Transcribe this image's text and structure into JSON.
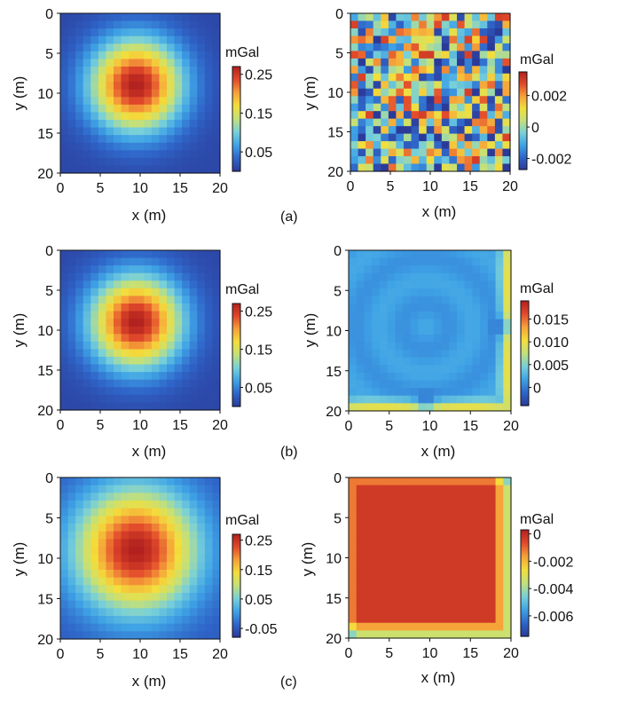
{
  "colormap": [
    "#2b3a99",
    "#2f66c9",
    "#3fa3e6",
    "#78d0d8",
    "#c3e07a",
    "#f3de3b",
    "#f6a13a",
    "#e24a2b",
    "#b0201e"
  ],
  "chart_data": [
    {
      "type": "heatmap",
      "id": "a-left",
      "row": "(a)",
      "pattern": "gauss",
      "x_range": [
        0,
        20
      ],
      "y_range": [
        0,
        20
      ],
      "y_inverted": true,
      "grid_cells": 21,
      "x_ticks": [
        "0",
        "5",
        "10",
        "15",
        "20"
      ],
      "y_ticks": [
        "0",
        "5",
        "10",
        "15",
        "20"
      ],
      "xlabel": "x (m)",
      "ylabel": "y (m)",
      "colorbar": {
        "unit": "mGal",
        "range": [
          0.0,
          0.27
        ],
        "ticks": [
          0.05,
          0.15,
          0.25
        ],
        "tick_labels": [
          "0.05",
          "0.15",
          "0.25"
        ]
      },
      "peak_center": [
        9.5,
        9.0
      ],
      "peak_value": 0.27,
      "edge_value": 0.01
    },
    {
      "type": "heatmap",
      "id": "a-right",
      "row": "(a)",
      "pattern": "noise",
      "x_range": [
        0,
        20
      ],
      "y_range": [
        0,
        20
      ],
      "y_inverted": true,
      "grid_cells": 21,
      "x_ticks": [
        "0",
        "5",
        "10",
        "15",
        "20"
      ],
      "y_ticks": [
        "0",
        "5",
        "10",
        "15",
        "20"
      ],
      "xlabel": "x (m)",
      "ylabel": "y (m)",
      "colorbar": {
        "unit": "mGal",
        "range": [
          -0.0027,
          0.0035
        ],
        "ticks": [
          -0.002,
          0,
          0.002
        ],
        "tick_labels": [
          "-0.002",
          "0",
          "0.002"
        ]
      },
      "noise_amplitude": 0.003
    },
    {
      "type": "heatmap",
      "id": "b-left",
      "row": "(b)",
      "pattern": "gauss",
      "x_range": [
        0,
        20
      ],
      "y_range": [
        0,
        20
      ],
      "y_inverted": true,
      "grid_cells": 21,
      "x_ticks": [
        "0",
        "5",
        "10",
        "15",
        "20"
      ],
      "y_ticks": [
        "0",
        "5",
        "10",
        "15",
        "20"
      ],
      "xlabel": "x (m)",
      "ylabel": "y (m)",
      "colorbar": {
        "unit": "mGal",
        "range": [
          0.0,
          0.27
        ],
        "ticks": [
          0.05,
          0.15,
          0.25
        ],
        "tick_labels": [
          "0.05",
          "0.15",
          "0.25"
        ]
      },
      "peak_center": [
        9.5,
        9.0
      ],
      "peak_value": 0.27,
      "edge_value": 0.01
    },
    {
      "type": "heatmap",
      "id": "b-right",
      "row": "(b)",
      "pattern": "edge-high",
      "x_range": [
        0,
        20
      ],
      "y_range": [
        0,
        20
      ],
      "y_inverted": true,
      "grid_cells": 21,
      "x_ticks": [
        "0",
        "5",
        "10",
        "15",
        "20"
      ],
      "y_ticks": [
        "0",
        "5",
        "10",
        "15",
        "20"
      ],
      "xlabel": "x (m)",
      "ylabel": "y (m)",
      "colorbar": {
        "unit": "mGal",
        "range": [
          -0.004,
          0.019
        ],
        "ticks": [
          0,
          0.005,
          0.01,
          0.015
        ],
        "tick_labels": [
          "0",
          "0.005",
          "0.010",
          "0.015"
        ]
      },
      "base_value": 0.0015,
      "edge_value": 0.015
    },
    {
      "type": "heatmap",
      "id": "c-left",
      "row": "(c)",
      "pattern": "gauss-wide",
      "x_range": [
        0,
        20
      ],
      "y_range": [
        0,
        20
      ],
      "y_inverted": true,
      "grid_cells": 21,
      "x_ticks": [
        "0",
        "5",
        "10",
        "15",
        "20"
      ],
      "y_ticks": [
        "0",
        "5",
        "10",
        "15",
        "20"
      ],
      "xlabel": "x (m)",
      "ylabel": "y (m)",
      "colorbar": {
        "unit": "mGal",
        "range": [
          -0.08,
          0.27
        ],
        "ticks": [
          -0.05,
          0.05,
          0.15,
          0.25
        ],
        "tick_labels": [
          "-0.05",
          "0.05",
          "0.15",
          "0.25"
        ]
      },
      "peak_center": [
        9.5,
        9.0
      ],
      "peak_value": 0.27,
      "edge_value": -0.05
    },
    {
      "type": "heatmap",
      "id": "c-right",
      "row": "(c)",
      "pattern": "edge-low",
      "x_range": [
        0,
        20
      ],
      "y_range": [
        0,
        20
      ],
      "y_inverted": true,
      "grid_cells": 21,
      "x_ticks": [
        "0",
        "5",
        "10",
        "15",
        "20"
      ],
      "y_ticks": [
        "0",
        "5",
        "10",
        "15",
        "20"
      ],
      "xlabel": "x (m)",
      "ylabel": "y (m)",
      "colorbar": {
        "unit": "mGal",
        "range": [
          -0.0075,
          0.0003
        ],
        "ticks": [
          -0.006,
          -0.004,
          -0.002,
          0
        ],
        "tick_labels": [
          "-0.006",
          "-0.004",
          "-0.002",
          "0"
        ]
      },
      "base_value": -0.0003,
      "edge_value": -0.006
    }
  ],
  "row_labels": [
    "(a)",
    "(b)",
    "(c)"
  ]
}
